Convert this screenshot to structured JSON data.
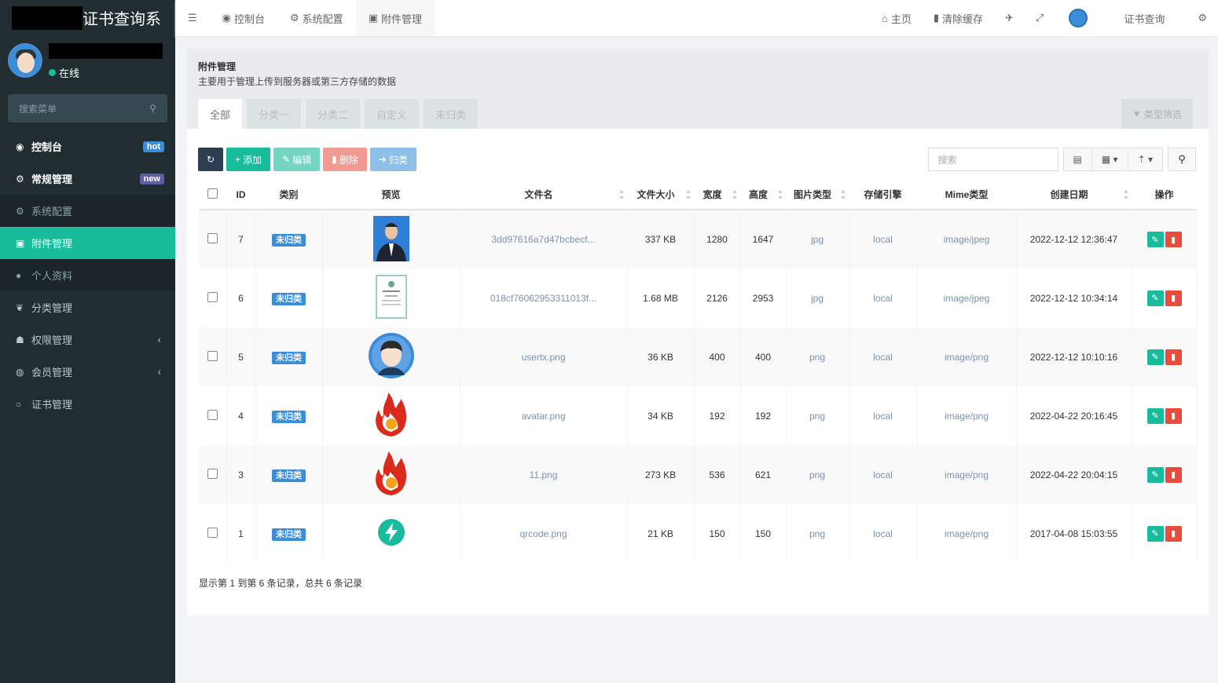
{
  "app": {
    "title_suffix": "证书查询系",
    "status": "在线",
    "menu_search_placeholder": "搜索菜单"
  },
  "sidebar": {
    "items": [
      {
        "label": "控制台",
        "icon": "dashboard-icon",
        "badge": "hot",
        "badge_color": "#3c8dd8"
      },
      {
        "label": "常规管理",
        "icon": "cogs-icon",
        "badge": "new",
        "badge_color": "#605ca8"
      },
      {
        "label": "系统配置",
        "icon": "gear-icon"
      },
      {
        "label": "附件管理",
        "icon": "file-image-icon"
      },
      {
        "label": "个人资料",
        "icon": "user-icon"
      },
      {
        "label": "分类管理",
        "icon": "leaf-icon"
      },
      {
        "label": "权限管理",
        "icon": "group-icon"
      },
      {
        "label": "会员管理",
        "icon": "user-circle-icon"
      },
      {
        "label": "证书管理",
        "icon": "circle-icon"
      }
    ]
  },
  "header": {
    "tabs": [
      "控制台",
      "系统配置",
      "附件管理"
    ],
    "home": "主页",
    "clear_cache": "清除缓存",
    "site_name": "证书查询"
  },
  "page": {
    "title": "附件管理",
    "description": "主要用于管理上传到服务器或第三方存储的数据",
    "tabs": [
      "全部",
      "分类一",
      "分类二",
      "自定义",
      "未归类"
    ],
    "filter": "类型筛选"
  },
  "toolbar": {
    "add": "添加",
    "edit": "编辑",
    "delete": "删除",
    "classify": "归类",
    "search_placeholder": "搜索"
  },
  "colors": {
    "sidebar": "#222d32",
    "accent": "#18bc9c",
    "danger": "#e74c3c",
    "primary": "#3c8dd8",
    "dark": "#2c3e50"
  },
  "table": {
    "headers": [
      "ID",
      "类别",
      "预览",
      "文件名",
      "文件大小",
      "宽度",
      "高度",
      "图片类型",
      "存储引擎",
      "Mime类型",
      "创建日期",
      "操作"
    ],
    "rows": [
      {
        "id": "7",
        "category": "未归类",
        "preview": "portrait-photo",
        "filename": "3dd97616a7d47bcbecf...",
        "size": "337 KB",
        "width": "1280",
        "height": "1647",
        "type": "jpg",
        "storage": "local",
        "mime": "image/jpeg",
        "created": "2022-12-12 12:36:47"
      },
      {
        "id": "6",
        "category": "未归类",
        "preview": "certificate",
        "filename": "018cf76062953311013f...",
        "size": "1.68 MB",
        "width": "2126",
        "height": "2953",
        "type": "jpg",
        "storage": "local",
        "mime": "image/jpeg",
        "created": "2022-12-12 10:34:14"
      },
      {
        "id": "5",
        "category": "未归类",
        "preview": "user-avatar",
        "filename": "usertx.png",
        "size": "36 KB",
        "width": "400",
        "height": "400",
        "type": "png",
        "storage": "local",
        "mime": "image/png",
        "created": "2022-12-12 10:10:16"
      },
      {
        "id": "4",
        "category": "未归类",
        "preview": "fire",
        "filename": "avatar.png",
        "size": "34 KB",
        "width": "192",
        "height": "192",
        "type": "png",
        "storage": "local",
        "mime": "image/png",
        "created": "2022-04-22 20:16:45"
      },
      {
        "id": "3",
        "category": "未归类",
        "preview": "fire",
        "filename": "11.png",
        "size": "273 KB",
        "width": "536",
        "height": "621",
        "type": "png",
        "storage": "local",
        "mime": "image/png",
        "created": "2022-04-22 20:04:15"
      },
      {
        "id": "1",
        "category": "未归类",
        "preview": "bolt",
        "filename": "qrcode.png",
        "size": "21 KB",
        "width": "150",
        "height": "150",
        "type": "png",
        "storage": "local",
        "mime": "image/png",
        "created": "2017-04-08 15:03:55"
      }
    ]
  },
  "footer": "显示第 1 到第 6 条记录，总共 6 条记录"
}
